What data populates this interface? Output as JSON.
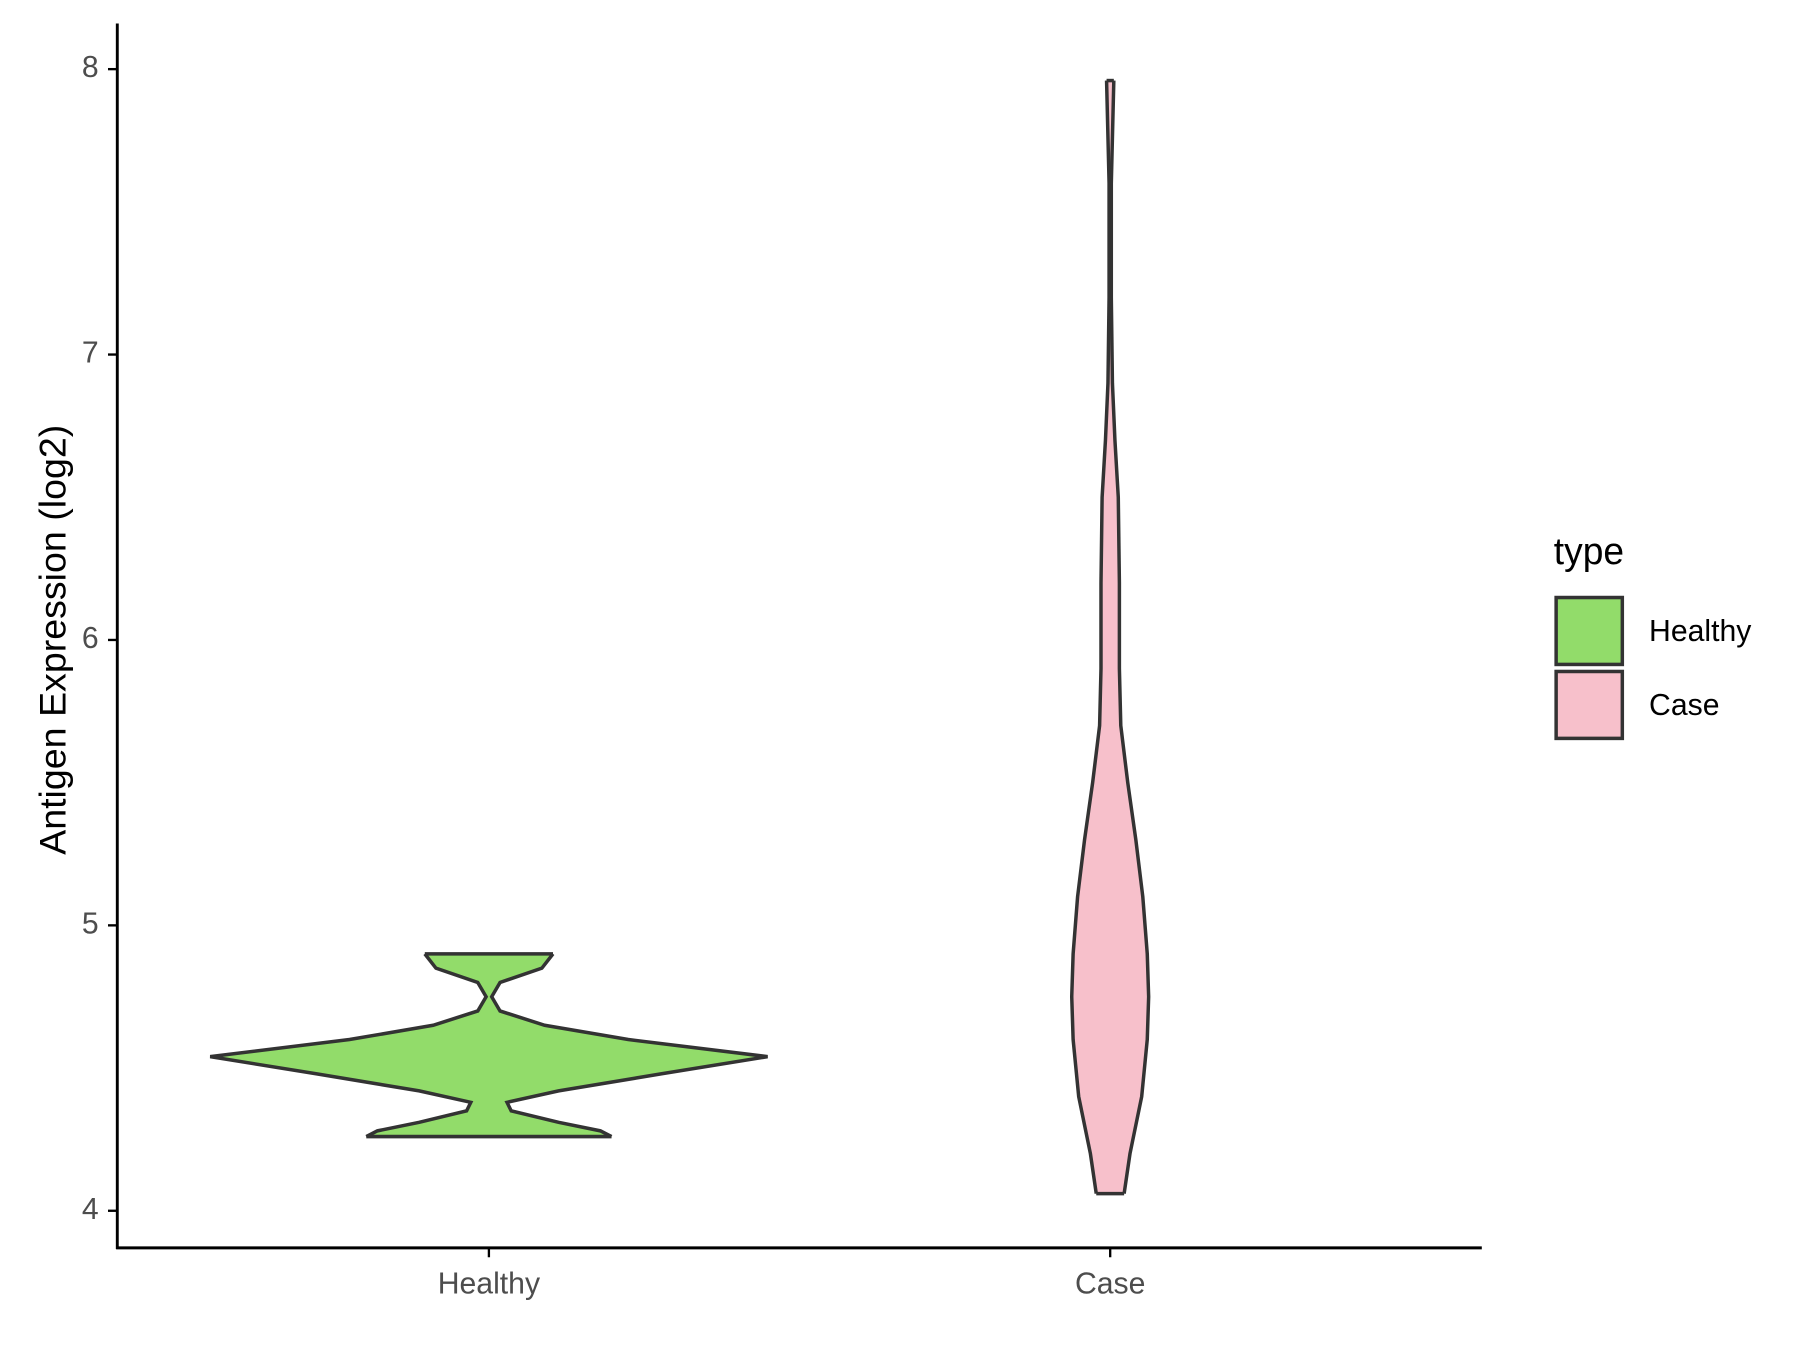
{
  "chart_data": {
    "type": "violin",
    "y_label": "Antigen Expression (log2)",
    "categories": [
      "Healthy",
      "Case"
    ],
    "legend_title": "type",
    "ylim": [
      3.87,
      8.16
    ],
    "yticks": [
      4,
      5,
      6,
      7,
      8
    ],
    "series": [
      {
        "name": "Healthy",
        "color": "#92dc6a",
        "values": [
          4.26,
          4.28,
          4.31,
          4.35,
          4.38,
          4.42,
          4.48,
          4.54,
          4.6,
          4.65,
          4.7,
          4.75,
          4.8,
          4.85,
          4.9
        ],
        "density": [
          0.44,
          0.4,
          0.25,
          0.08,
          0.065,
          0.25,
          0.62,
          1.0,
          0.5,
          0.2,
          0.04,
          0.01,
          0.04,
          0.19,
          0.23
        ]
      },
      {
        "name": "Case",
        "color": "#f7c0cb",
        "values": [
          4.06,
          4.2,
          4.4,
          4.6,
          4.75,
          4.9,
          5.1,
          5.3,
          5.5,
          5.7,
          5.9,
          6.2,
          6.5,
          6.7,
          6.9,
          7.2,
          7.6,
          7.96
        ],
        "density": [
          0.05,
          0.071,
          0.113,
          0.133,
          0.138,
          0.133,
          0.117,
          0.092,
          0.063,
          0.038,
          0.033,
          0.033,
          0.029,
          0.017,
          0.008,
          0.004,
          0.004,
          0.013
        ]
      }
    ]
  }
}
